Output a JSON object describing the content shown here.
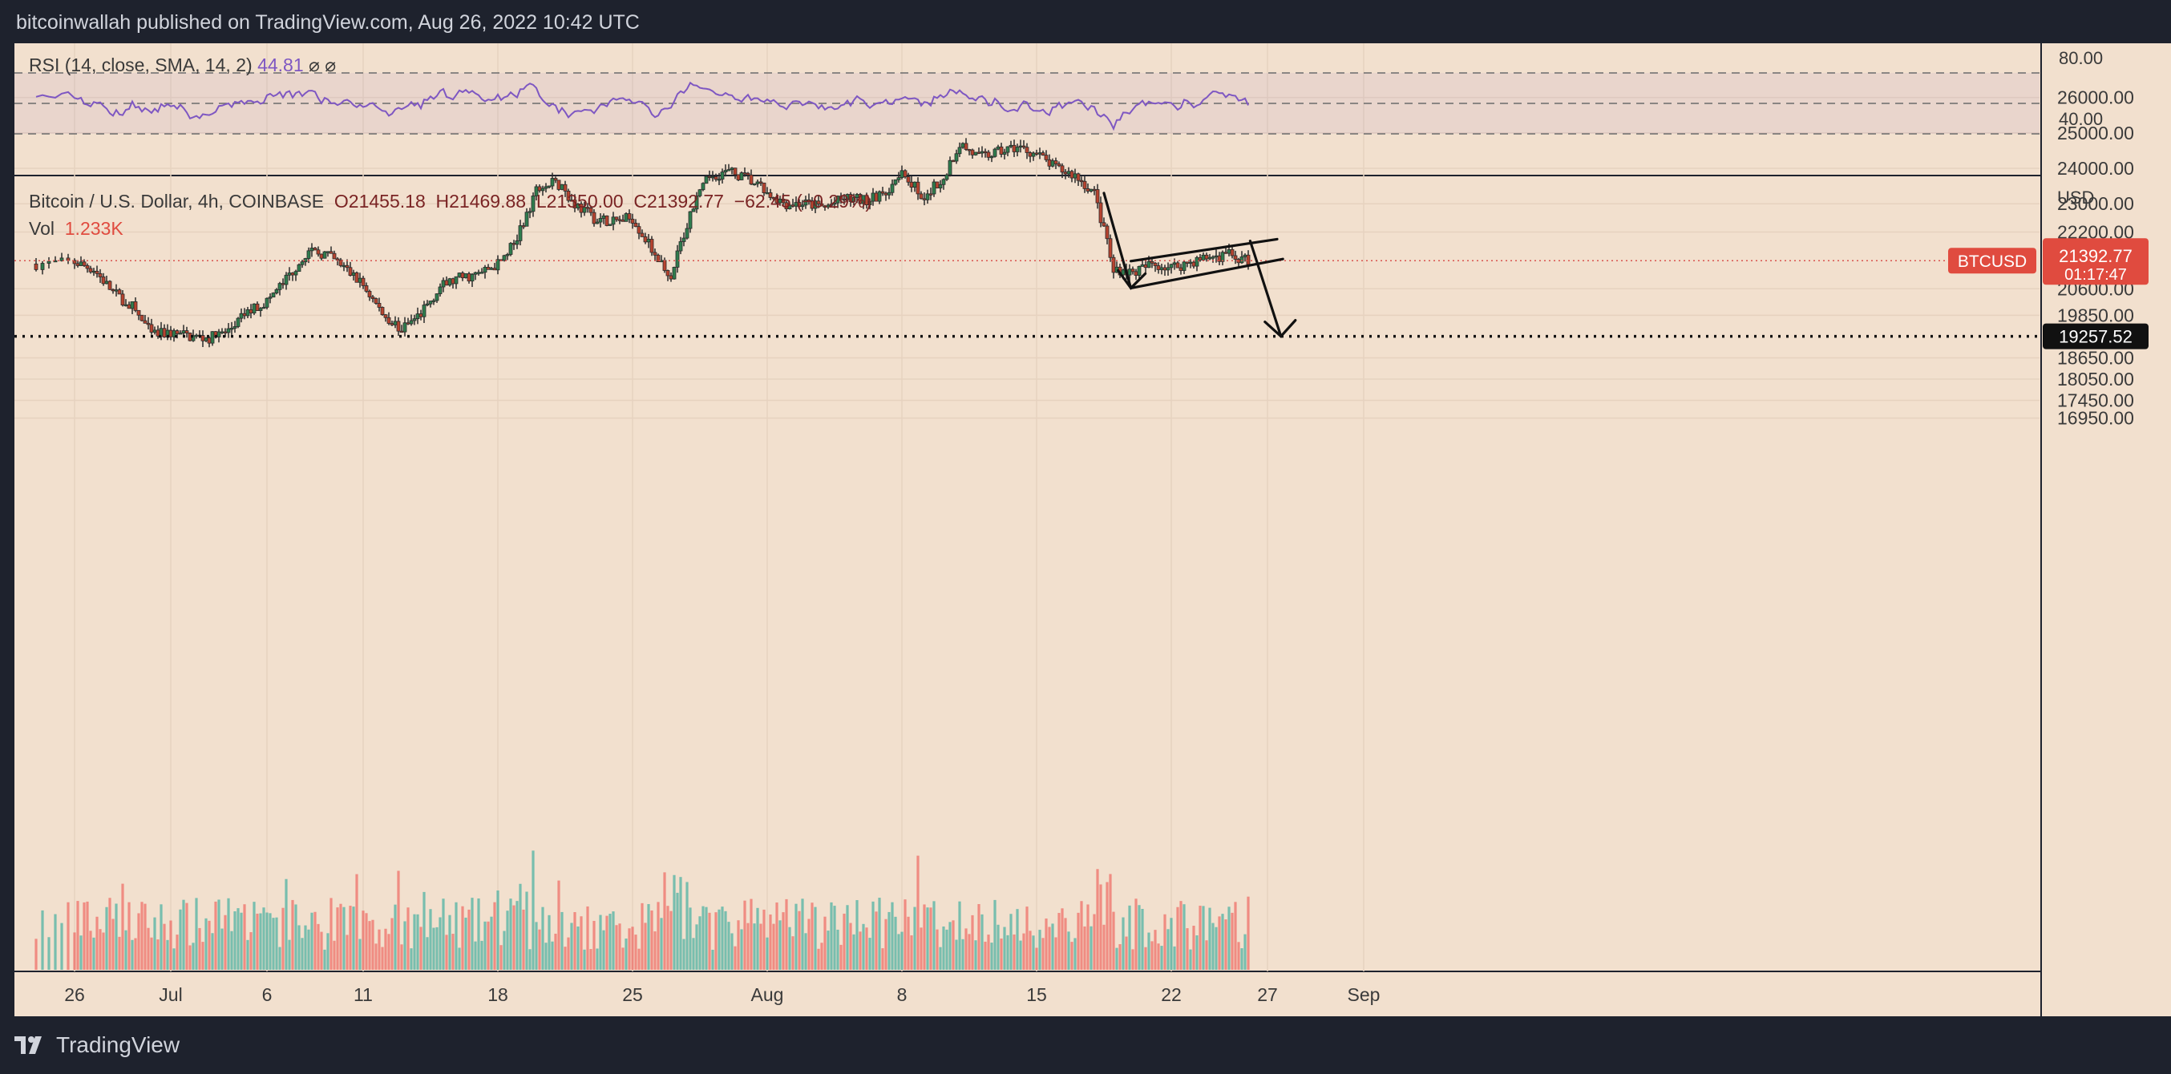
{
  "header": {
    "published": "bitcoinwallah published on TradingView.com, Aug 26, 2022 10:42 UTC"
  },
  "rsi": {
    "label": "RSI (14, close, SMA, 14, 2)",
    "value": "44.81",
    "extra": "⌀ ⌀",
    "scale": [
      "80.00",
      "40.00"
    ]
  },
  "legend": {
    "symbol": "Bitcoin / U.S. Dollar, 4h, COINBASE",
    "open": "O21455.18",
    "high": "H21469.88",
    "low": "L21350.00",
    "close": "C21392.77",
    "change": "−62.45 (−0.29%)",
    "vol_label": "Vol",
    "vol_value": "1.233K"
  },
  "price_axis": {
    "currency": "USD",
    "ticks": [
      "26000.00",
      "25000.00",
      "24000.00",
      "23000.00",
      "22200.00",
      "20600.00",
      "19850.00",
      "18650.00",
      "18050.00",
      "17450.00",
      "16950.00"
    ]
  },
  "badges": {
    "symbol": "BTCUSD",
    "price": "21392.77",
    "countdown": "01:17:47",
    "target": "19257.52"
  },
  "time_axis": {
    "ticks": [
      "26",
      "Jul",
      "6",
      "11",
      "18",
      "25",
      "Aug",
      "8",
      "15",
      "22",
      "27",
      "Sep"
    ]
  },
  "footer": {
    "brand": "TradingView"
  },
  "colors": {
    "background": "#f2e0ce",
    "frame": "#1e222d",
    "up_candle": "#26a69a",
    "down_candle": "#ef5350",
    "rsi_line": "#7e57c2",
    "price_badge": "#e04b3f"
  },
  "chart_data": {
    "type": "candlestick",
    "title": "Bitcoin / U.S. Dollar, 4h, COINBASE",
    "x": [
      "Jun 26",
      "Jul 1",
      "Jul 6",
      "Jul 11",
      "Jul 18",
      "Jul 25",
      "Aug 1",
      "Aug 8",
      "Aug 15",
      "Aug 22",
      "Aug 27",
      "Sep 1"
    ],
    "close_path": [
      {
        "date": "Jun 24",
        "price": 21300
      },
      {
        "date": "Jun 26",
        "price": 21350
      },
      {
        "date": "Jun 27",
        "price": 21150
      },
      {
        "date": "Jun 28",
        "price": 20500
      },
      {
        "date": "Jun 29",
        "price": 20100
      },
      {
        "date": "Jun 30",
        "price": 19300
      },
      {
        "date": "Jul 1",
        "price": 19350
      },
      {
        "date": "Jul 2",
        "price": 19250
      },
      {
        "date": "Jul 3",
        "price": 19200
      },
      {
        "date": "Jul 4",
        "price": 19400
      },
      {
        "date": "Jul 5",
        "price": 19950
      },
      {
        "date": "Jul 6",
        "price": 20250
      },
      {
        "date": "Jul 7",
        "price": 20850
      },
      {
        "date": "Jul 8",
        "price": 21600
      },
      {
        "date": "Jul 9",
        "price": 21600
      },
      {
        "date": "Jul 10",
        "price": 21200
      },
      {
        "date": "Jul 11",
        "price": 20700
      },
      {
        "date": "Jul 12",
        "price": 19900
      },
      {
        "date": "Jul 13",
        "price": 19450
      },
      {
        "date": "Jul 14",
        "price": 19900
      },
      {
        "date": "Jul 15",
        "price": 20650
      },
      {
        "date": "Jul 16",
        "price": 20900
      },
      {
        "date": "Jul 17",
        "price": 21000
      },
      {
        "date": "Jul 18",
        "price": 21300
      },
      {
        "date": "Jul 19",
        "price": 22000
      },
      {
        "date": "Jul 20",
        "price": 23400
      },
      {
        "date": "Jul 21",
        "price": 23600
      },
      {
        "date": "Jul 22",
        "price": 23000
      },
      {
        "date": "Jul 23",
        "price": 22600
      },
      {
        "date": "Jul 24",
        "price": 22500
      },
      {
        "date": "Jul 25",
        "price": 22600
      },
      {
        "date": "Jul 26",
        "price": 21700
      },
      {
        "date": "Jul 27",
        "price": 21000
      },
      {
        "date": "Jul 28",
        "price": 22700
      },
      {
        "date": "Jul 29",
        "price": 23800
      },
      {
        "date": "Jul 30",
        "price": 23900
      },
      {
        "date": "Jul 31",
        "price": 23700
      },
      {
        "date": "Aug 1",
        "price": 23300
      },
      {
        "date": "Aug 2",
        "price": 23000
      },
      {
        "date": "Aug 3",
        "price": 23000
      },
      {
        "date": "Aug 4",
        "price": 22900
      },
      {
        "date": "Aug 5",
        "price": 23150
      },
      {
        "date": "Aug 6",
        "price": 23100
      },
      {
        "date": "Aug 7",
        "price": 23200
      },
      {
        "date": "Aug 8",
        "price": 24000
      },
      {
        "date": "Aug 9",
        "price": 23200
      },
      {
        "date": "Aug 10",
        "price": 23600
      },
      {
        "date": "Aug 11",
        "price": 24700
      },
      {
        "date": "Aug 12",
        "price": 24300
      },
      {
        "date": "Aug 13",
        "price": 24450
      },
      {
        "date": "Aug 14",
        "price": 24600
      },
      {
        "date": "Aug 15",
        "price": 24400
      },
      {
        "date": "Aug 16",
        "price": 24000
      },
      {
        "date": "Aug 17",
        "price": 23800
      },
      {
        "date": "Aug 18",
        "price": 23300
      },
      {
        "date": "Aug 19",
        "price": 21200
      },
      {
        "date": "Aug 20",
        "price": 21050
      },
      {
        "date": "Aug 21",
        "price": 21300
      },
      {
        "date": "Aug 22",
        "price": 21200
      },
      {
        "date": "Aug 23",
        "price": 21350
      },
      {
        "date": "Aug 24",
        "price": 21500
      },
      {
        "date": "Aug 25",
        "price": 21550
      },
      {
        "date": "Aug 26",
        "price": 21392.77
      }
    ],
    "horizontal_level": 19257.52,
    "last_price": 21392.77,
    "y_ticks": [
      26000,
      25000,
      24000,
      23000,
      22200,
      20600,
      19850,
      18650,
      18050,
      17450,
      16950
    ],
    "rsi": {
      "name": "RSI (14, close, SMA, 14, 2)",
      "last": 44.81,
      "levels": [
        70,
        50,
        30
      ],
      "ticks": [
        80,
        40
      ]
    }
  }
}
